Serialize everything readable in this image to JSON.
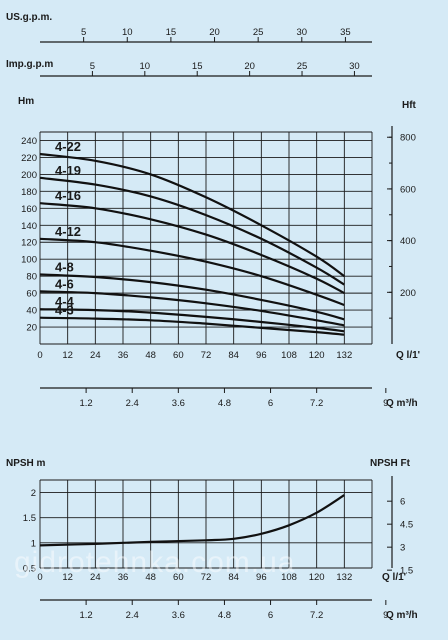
{
  "chart_data": [
    {
      "type": "line",
      "name": "pump-head-curves",
      "x_unit": "Q l/1'",
      "y_left_unit": "Hm",
      "y_right_unit": "Hft",
      "x_ticks": [
        0,
        12,
        24,
        36,
        48,
        60,
        72,
        84,
        96,
        108,
        120,
        132
      ],
      "xlim": [
        0,
        132
      ],
      "y_ticks": [
        20,
        40,
        60,
        80,
        100,
        120,
        140,
        160,
        180,
        200,
        220,
        240
      ],
      "ylim": [
        0,
        250
      ],
      "y_right_ticks": [
        200,
        400,
        600,
        800
      ],
      "top_scale_us": {
        "label": "US.g.p.m.",
        "ticks": [
          5,
          10,
          15,
          20,
          25,
          30,
          35
        ]
      },
      "top_scale_imp": {
        "label": "Imp.g.p.m",
        "ticks": [
          5,
          10,
          15,
          20,
          25,
          30
        ]
      },
      "bottom_scale_m3h": {
        "label": "Q m³/h",
        "ticks": [
          "1.2",
          "2.4",
          "3.6",
          "4.8",
          "6",
          "7.2",
          "9"
        ]
      },
      "series": [
        {
          "name": "4-22",
          "x": [
            0,
            24,
            48,
            72,
            96,
            120,
            132
          ],
          "y": [
            224,
            216,
            200,
            173,
            140,
            103,
            80
          ]
        },
        {
          "name": "4-19",
          "x": [
            0,
            24,
            48,
            72,
            96,
            120,
            132
          ],
          "y": [
            196,
            188,
            174,
            152,
            124,
            90,
            70
          ]
        },
        {
          "name": "4-16",
          "x": [
            0,
            24,
            48,
            72,
            96,
            120,
            132
          ],
          "y": [
            166,
            160,
            147,
            129,
            105,
            77,
            60
          ]
        },
        {
          "name": "4-12",
          "x": [
            0,
            24,
            48,
            72,
            96,
            120,
            132
          ],
          "y": [
            124,
            120,
            110,
            97,
            80,
            58,
            46
          ]
        },
        {
          "name": "4-8",
          "x": [
            0,
            24,
            48,
            72,
            96,
            120,
            132
          ],
          "y": [
            82,
            79,
            73,
            64,
            52,
            38,
            29
          ]
        },
        {
          "name": "4-6",
          "x": [
            0,
            24,
            48,
            72,
            96,
            120,
            132
          ],
          "y": [
            62,
            60,
            55,
            48,
            39,
            28,
            22
          ]
        },
        {
          "name": "4-4",
          "x": [
            0,
            24,
            48,
            72,
            96,
            120,
            132
          ],
          "y": [
            41,
            40,
            37,
            32,
            26,
            19,
            15
          ]
        },
        {
          "name": "4-3",
          "x": [
            0,
            24,
            48,
            72,
            96,
            120,
            132
          ],
          "y": [
            31,
            30,
            28,
            24,
            19,
            14,
            11
          ]
        }
      ]
    },
    {
      "type": "line",
      "name": "npsh-curve",
      "y_left_label": "NPSH m",
      "y_right_label": "NPSH Ft",
      "x_unit": "Q l/1'",
      "x_ticks": [
        0,
        12,
        24,
        36,
        48,
        60,
        72,
        84,
        96,
        108,
        120,
        132
      ],
      "xlim": [
        0,
        132
      ],
      "y_ticks": [
        "0.5",
        "1",
        "1.5",
        "2"
      ],
      "ylim": [
        0.5,
        2.25
      ],
      "y_right_ticks": [
        "1.5",
        "3",
        "4.5",
        "6"
      ],
      "bottom_scale_m3h": {
        "label": "Q m³/h",
        "ticks": [
          "1.2",
          "2.4",
          "3.6",
          "4.8",
          "6",
          "7.2",
          "9"
        ]
      },
      "series": [
        {
          "name": "",
          "x": [
            0,
            24,
            48,
            72,
            84,
            96,
            108,
            120,
            132
          ],
          "y": [
            0.95,
            0.98,
            1.02,
            1.05,
            1.08,
            1.18,
            1.35,
            1.6,
            1.95
          ]
        }
      ]
    }
  ],
  "watermark": "gidrotehnka.com.ua"
}
